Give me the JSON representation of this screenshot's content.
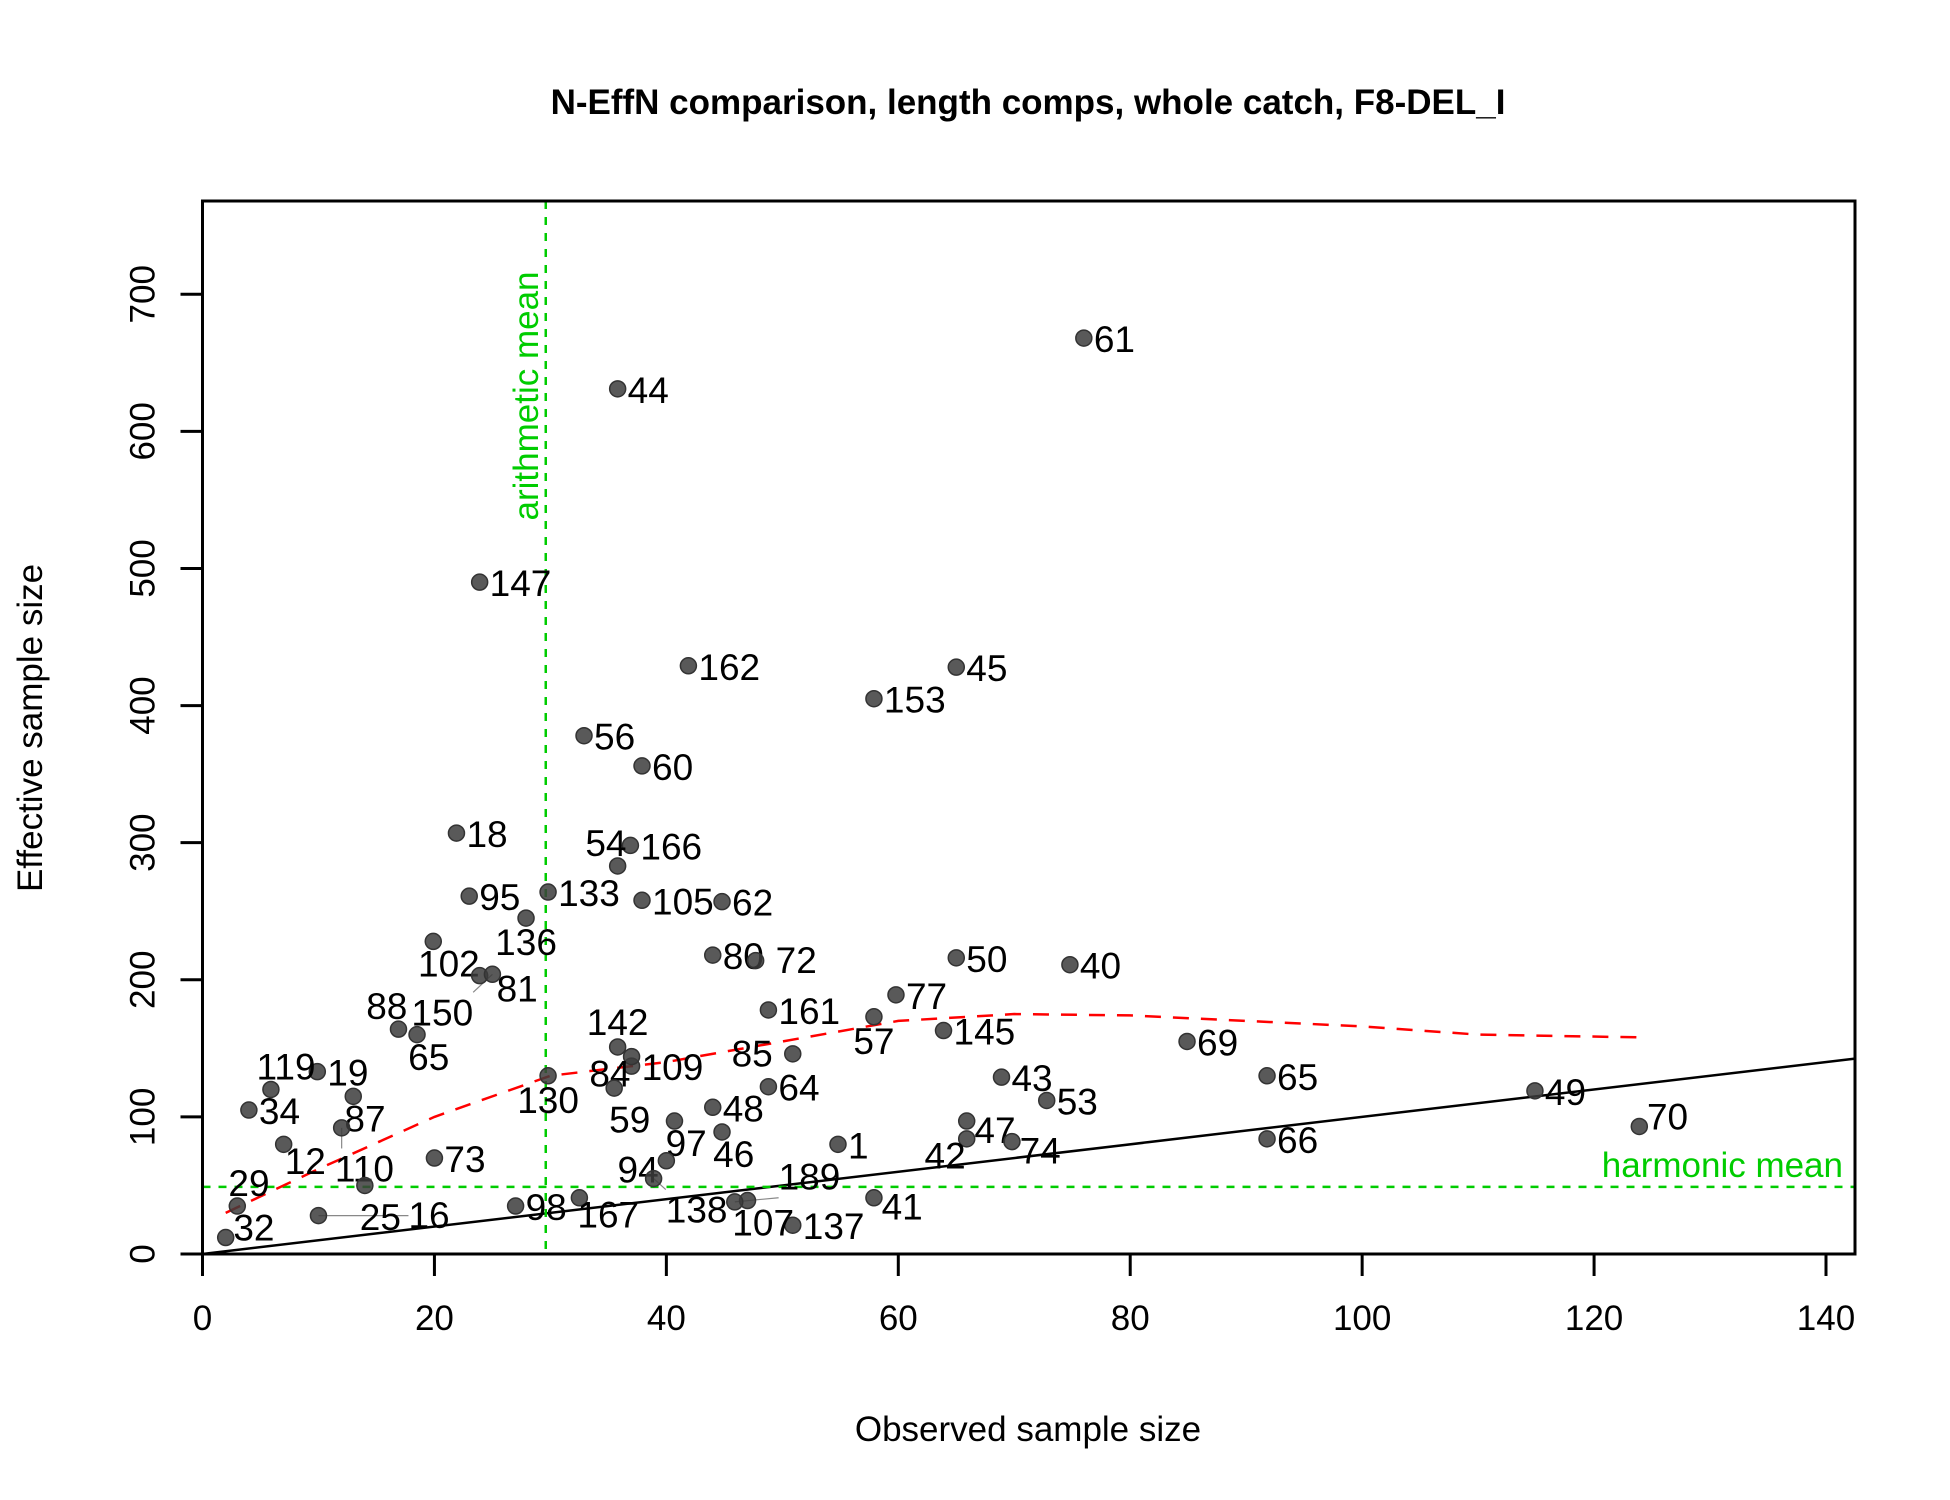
{
  "chart_data": {
    "type": "scatter",
    "title": "N-EffN comparison, length comps, whole catch, F8-DEL_I",
    "xlabel": "Observed sample size",
    "ylabel": "Effective sample size",
    "xlim": [
      0,
      142.5
    ],
    "ylim": [
      0,
      768
    ],
    "xticks": [
      0,
      20,
      40,
      60,
      80,
      100,
      120,
      140
    ],
    "yticks": [
      0,
      100,
      200,
      300,
      400,
      500,
      600,
      700
    ],
    "grid": false,
    "points": [
      {
        "label": "61",
        "x": 76,
        "y": 668
      },
      {
        "label": "44",
        "x": 35.8,
        "y": 631
      },
      {
        "label": "147",
        "x": 23.9,
        "y": 490
      },
      {
        "label": "162",
        "x": 41.9,
        "y": 429
      },
      {
        "label": "45",
        "x": 65,
        "y": 428
      },
      {
        "label": "153",
        "x": 57.9,
        "y": 405
      },
      {
        "label": "56",
        "x": 32.9,
        "y": 378
      },
      {
        "label": "60",
        "x": 37.9,
        "y": 356
      },
      {
        "label": "18",
        "x": 21.9,
        "y": 307
      },
      {
        "label": "166",
        "x": 36.9,
        "y": 298
      },
      {
        "label": "54",
        "x": 35.8,
        "y": 283
      },
      {
        "label": "95",
        "x": 23,
        "y": 261
      },
      {
        "label": "133",
        "x": 29.8,
        "y": 264
      },
      {
        "label": "105",
        "x": 37.9,
        "y": 258
      },
      {
        "label": "62",
        "x": 44.8,
        "y": 257
      },
      {
        "label": "136",
        "x": 27.9,
        "y": 245
      },
      {
        "label": "102",
        "x": 19.9,
        "y": 228
      },
      {
        "label": "80",
        "x": 44,
        "y": 218
      },
      {
        "label": "72",
        "x": 47.7,
        "y": 214
      },
      {
        "label": "50",
        "x": 65,
        "y": 216
      },
      {
        "label": "40",
        "x": 74.8,
        "y": 211
      },
      {
        "label": "81",
        "x": 23.9,
        "y": 203
      },
      {
        "label": "150",
        "x": 25,
        "y": 204
      },
      {
        "label": "77",
        "x": 59.8,
        "y": 189
      },
      {
        "label": "161",
        "x": 48.8,
        "y": 178
      },
      {
        "label": "57",
        "x": 57.9,
        "y": 173
      },
      {
        "label": "145",
        "x": 63.9,
        "y": 163
      },
      {
        "label": "88",
        "x": 16.9,
        "y": 164
      },
      {
        "label": "65",
        "x": 18.5,
        "y": 160
      },
      {
        "label": "69",
        "x": 84.9,
        "y": 155
      },
      {
        "label": "43",
        "x": 68.9,
        "y": 129
      },
      {
        "label": "65",
        "x": 91.8,
        "y": 130
      },
      {
        "label": "53",
        "x": 72.8,
        "y": 112
      },
      {
        "label": "49",
        "x": 114.9,
        "y": 119
      },
      {
        "label": "70",
        "x": 123.9,
        "y": 93
      },
      {
        "label": "47",
        "x": 65.9,
        "y": 97
      },
      {
        "label": "42",
        "x": 65.9,
        "y": 84
      },
      {
        "label": "74",
        "x": 69.8,
        "y": 82
      },
      {
        "label": "66",
        "x": 91.8,
        "y": 84
      },
      {
        "label": "64",
        "x": 48.8,
        "y": 122
      },
      {
        "label": "85",
        "x": 50.9,
        "y": 146
      },
      {
        "label": "109",
        "x": 37,
        "y": 137
      },
      {
        "label": "142",
        "x": 35.8,
        "y": 151
      },
      {
        "label": "84",
        "x": 37,
        "y": 144
      },
      {
        "label": "130",
        "x": 29.8,
        "y": 130
      },
      {
        "label": "59",
        "x": 35.5,
        "y": 121
      },
      {
        "label": "48",
        "x": 44,
        "y": 107
      },
      {
        "label": "46",
        "x": 44.8,
        "y": 89
      },
      {
        "label": "97",
        "x": 40.7,
        "y": 97
      },
      {
        "label": "94",
        "x": 40,
        "y": 68
      },
      {
        "label": "138",
        "x": 38.9,
        "y": 55
      },
      {
        "label": "1",
        "x": 54.8,
        "y": 80
      },
      {
        "label": "41",
        "x": 57.9,
        "y": 41
      },
      {
        "label": "137",
        "x": 50.9,
        "y": 21
      },
      {
        "label": "107",
        "x": 47,
        "y": 39
      },
      {
        "label": "189",
        "x": 45.9,
        "y": 38
      },
      {
        "label": "167",
        "x": 32.5,
        "y": 41
      },
      {
        "label": "19",
        "x": 9.9,
        "y": 133
      },
      {
        "label": "34",
        "x": 4,
        "y": 105
      },
      {
        "label": "119",
        "x": 5.9,
        "y": 120
      },
      {
        "label": "87",
        "x": 13,
        "y": 115
      },
      {
        "label": "32",
        "x": 2,
        "y": 12
      },
      {
        "label": "12",
        "x": 7,
        "y": 80
      },
      {
        "label": "29",
        "x": 3,
        "y": 35
      },
      {
        "label": "98",
        "x": 27,
        "y": 35
      },
      {
        "label": "110",
        "x": 12,
        "y": 92
      },
      {
        "label": "73",
        "x": 20,
        "y": 70
      },
      {
        "label": "25",
        "x": 14,
        "y": 50
      },
      {
        "label": "16",
        "x": 10,
        "y": 28
      }
    ],
    "reference_lines": {
      "one_to_one": {
        "label": "",
        "slope": 1,
        "intercept": 0
      },
      "harmonic_mean": {
        "label": "harmonic mean",
        "y": 49
      },
      "arithmetic_mean": {
        "label": "arithmetic mean",
        "x": 29.6
      }
    },
    "smoother": {
      "x": [
        2,
        10,
        20,
        30,
        40,
        50,
        60,
        70,
        80,
        90,
        100,
        110,
        124
      ],
      "y": [
        30,
        62,
        100,
        130,
        140,
        155,
        170,
        175,
        174,
        170,
        166,
        160,
        158
      ]
    }
  }
}
